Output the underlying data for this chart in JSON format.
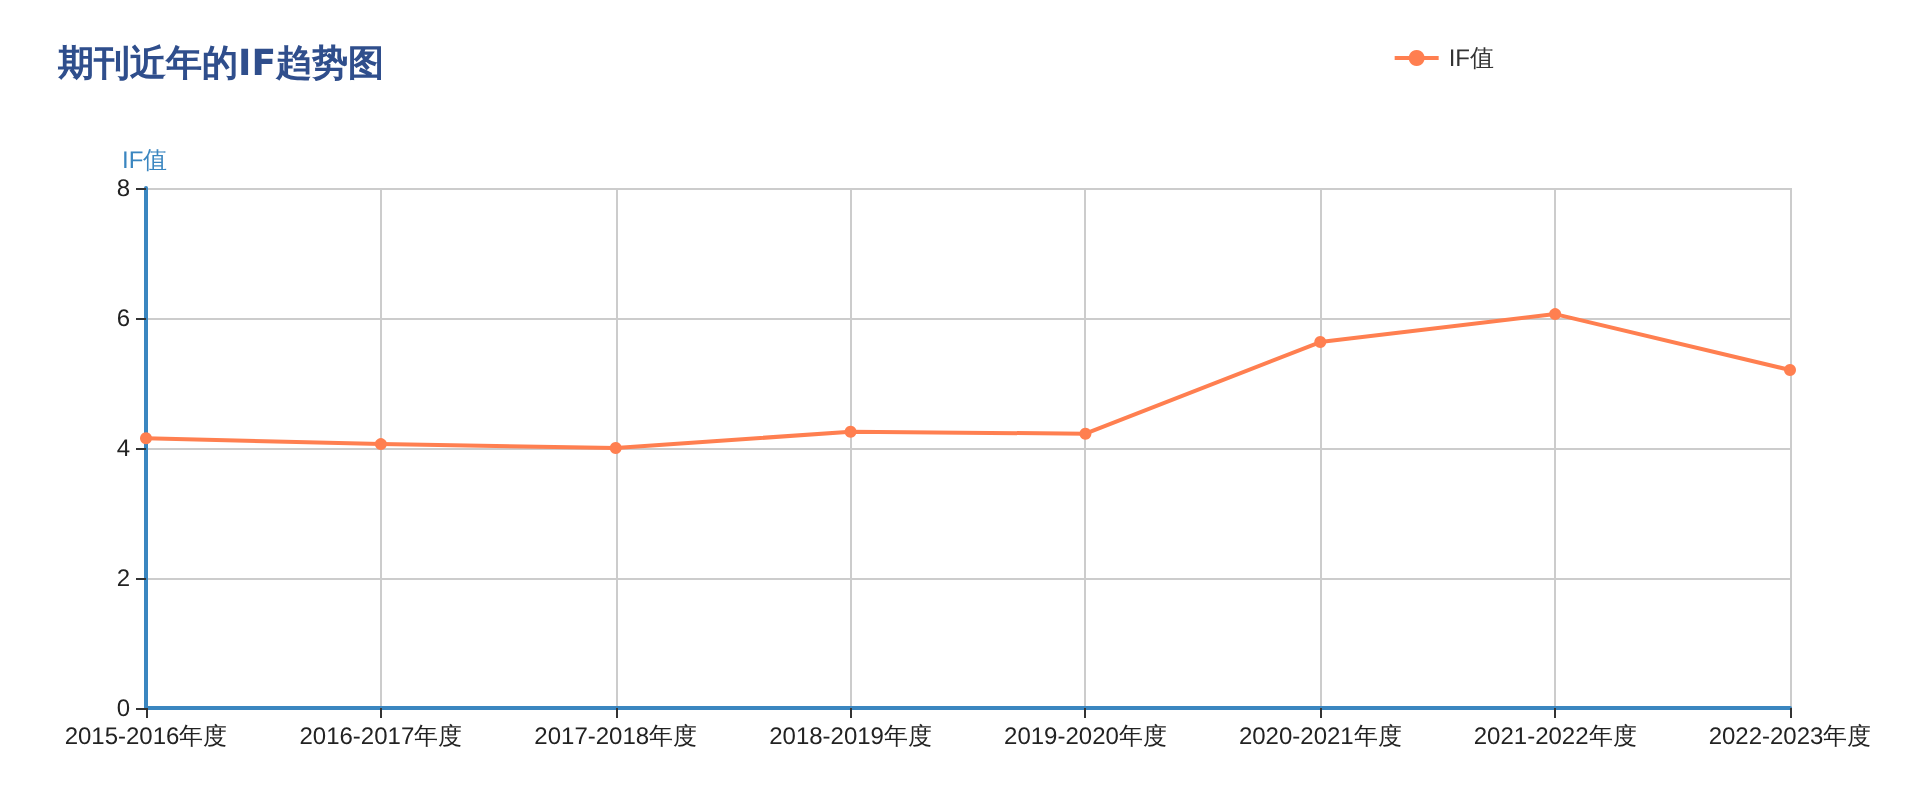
{
  "chart_data": {
    "type": "line",
    "title": "期刊近年的IF趋势图",
    "ylabel": "IF值",
    "categories": [
      "2015-2016年度",
      "2016-2017年度",
      "2017-2018年度",
      "2018-2019年度",
      "2019-2020年度",
      "2020-2021年度",
      "2021-2022年度",
      "2022-2023年度"
    ],
    "series": [
      {
        "name": "IF值",
        "color": "#ff7f50",
        "values": [
          4.15,
          4.06,
          4.0,
          4.25,
          4.22,
          5.63,
          6.06,
          5.2
        ]
      }
    ],
    "ylim": [
      0,
      8
    ],
    "yticks": [
      0,
      2,
      4,
      6,
      8
    ],
    "grid": true,
    "legend": "top right",
    "marker": "circle",
    "line_style": "solid"
  }
}
